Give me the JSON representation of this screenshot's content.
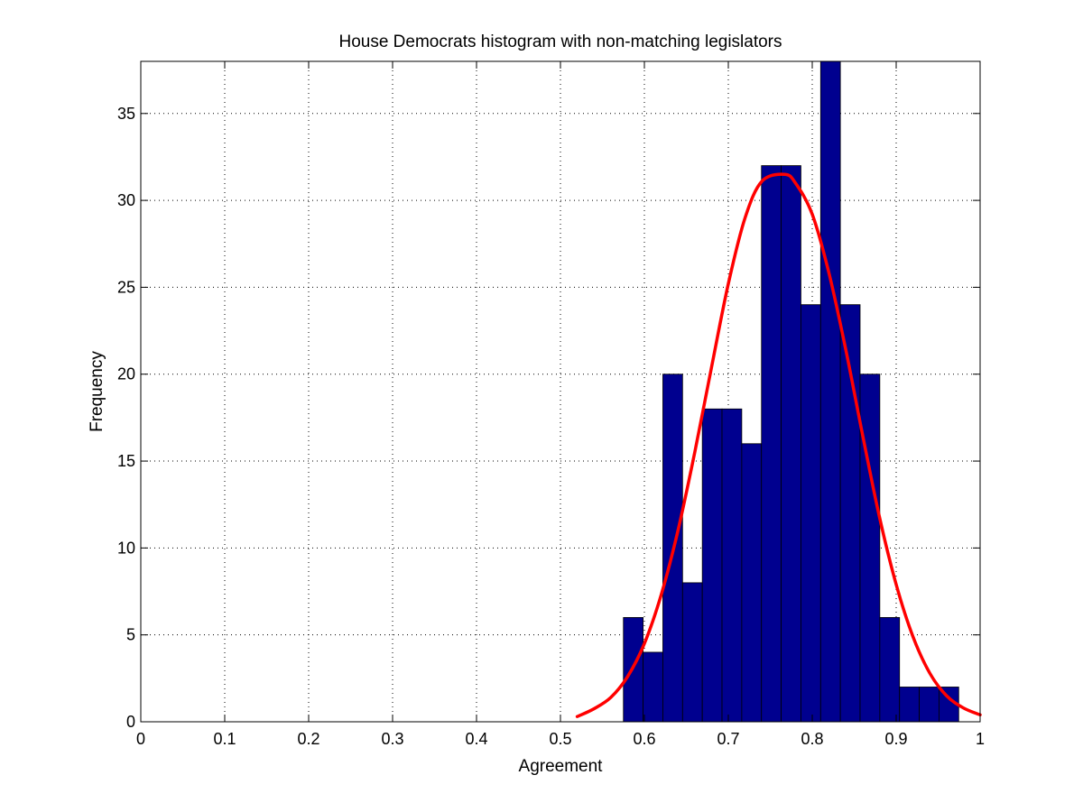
{
  "chart_data": {
    "type": "bar",
    "title": "House Democrats histogram with non-matching legislators",
    "xlabel": "Agreement",
    "ylabel": "Frequency",
    "xlim": [
      0,
      1
    ],
    "ylim": [
      0,
      38
    ],
    "xticks": [
      0,
      0.1,
      0.2,
      0.3,
      0.4,
      0.5,
      0.6,
      0.7,
      0.8,
      0.9,
      1
    ],
    "xtick_labels": [
      "0",
      "0.1",
      "0.2",
      "0.3",
      "0.4",
      "0.5",
      "0.6",
      "0.7",
      "0.8",
      "0.9",
      "1"
    ],
    "yticks": [
      0,
      5,
      10,
      15,
      20,
      25,
      30,
      35
    ],
    "ytick_labels": [
      "0",
      "5",
      "10",
      "15",
      "20",
      "25",
      "30",
      "35"
    ],
    "grid": true,
    "series": [
      {
        "type": "histogram",
        "bin_edges": [
          0.575,
          0.5985,
          0.622,
          0.6455,
          0.669,
          0.6925,
          0.716,
          0.7395,
          0.763,
          0.7865,
          0.81,
          0.8335,
          0.857,
          0.8805,
          0.904,
          0.9275,
          0.951,
          0.9745
        ],
        "counts": [
          6,
          4,
          20,
          8,
          18,
          18,
          16,
          32,
          32,
          24,
          38,
          24,
          20,
          6,
          2,
          2,
          2
        ],
        "color": "#00008f"
      },
      {
        "type": "line",
        "x": [
          0.52,
          0.54,
          0.56,
          0.58,
          0.6,
          0.62,
          0.64,
          0.66,
          0.68,
          0.7,
          0.72,
          0.74,
          0.767,
          0.78,
          0.8,
          0.82,
          0.84,
          0.86,
          0.88,
          0.9,
          0.92,
          0.94,
          0.96,
          0.98,
          1.0
        ],
        "y": [
          0.3,
          0.75,
          1.4,
          2.6,
          4.5,
          7.3,
          11.0,
          15.5,
          20.4,
          25.2,
          29.0,
          31.1,
          31.5,
          31.0,
          29.2,
          25.8,
          21.4,
          16.5,
          11.8,
          7.9,
          4.9,
          2.8,
          1.5,
          0.8,
          0.4
        ],
        "color": "#ff0000"
      }
    ]
  }
}
